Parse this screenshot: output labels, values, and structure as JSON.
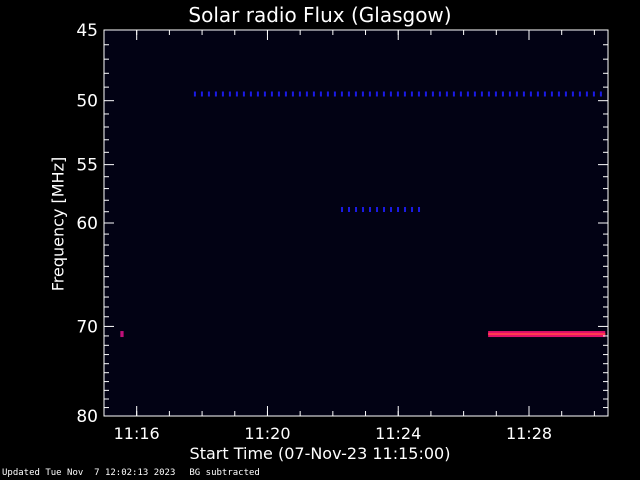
{
  "chart_data": {
    "type": "heatmap",
    "title": "Solar radio Flux (Glasgow)",
    "ylabel": "Frequency [MHz]",
    "xlabel": "Start Time (07-Nov-23 11:15:00)",
    "ylim": [
      45,
      80
    ],
    "yscale": "log",
    "yticks": [
      45,
      50,
      55,
      60,
      70,
      80
    ],
    "xlim": [
      "11:15:00",
      "11:30:25"
    ],
    "xticks": [
      "11:16",
      "11:20",
      "11:24",
      "11:28"
    ],
    "background_color": "#020214",
    "features": [
      {
        "name": "band-49.5",
        "freq": 49.5,
        "t_start": "11:17:45",
        "t_end": "11:30:20",
        "color": "#1a1ae6",
        "intensity": "dashed"
      },
      {
        "name": "burst-58.8",
        "freq": 58.8,
        "t_start": "11:22:15",
        "t_end": "11:24:45",
        "color": "#1a1ae6",
        "intensity": "dashed"
      },
      {
        "name": "band-70.8",
        "freq": 70.8,
        "t_start": "11:26:45",
        "t_end": "11:30:20",
        "color": "#e0106a",
        "intensity": "strong"
      },
      {
        "name": "spot-70.8",
        "freq": 70.8,
        "t_start": "11:15:30",
        "t_end": "11:15:36",
        "color": "#c0107a",
        "intensity": "spot"
      }
    ]
  },
  "footer": {
    "updated": "Updated Tue Nov  7 12:02:13 2023",
    "note": "BG subtracted"
  }
}
